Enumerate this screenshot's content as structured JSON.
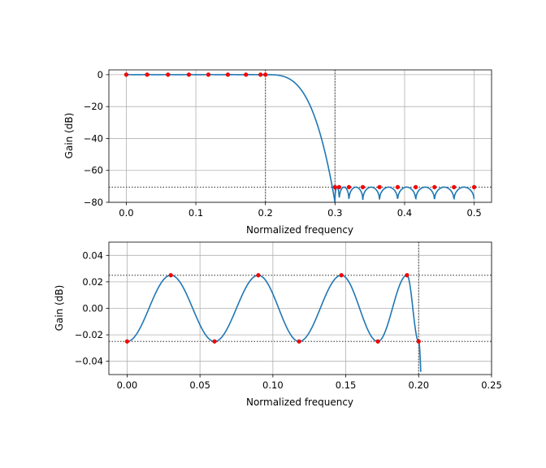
{
  "chart_data": [
    {
      "type": "line",
      "xlabel": "Normalized frequency",
      "ylabel": "Gain (dB)",
      "xlim": [
        -0.025,
        0.525
      ],
      "ylim": [
        -80,
        3
      ],
      "xticks": [
        0.0,
        0.1,
        0.2,
        0.3,
        0.4,
        0.5
      ],
      "xtick_labels": [
        "0.0",
        "0.1",
        "0.2",
        "0.3",
        "0.4",
        "0.5"
      ],
      "yticks": [
        0,
        -20,
        -40,
        -60,
        -80
      ],
      "ytick_labels": [
        "0",
        "−20",
        "−40",
        "−60",
        "−80"
      ],
      "grid": true,
      "ref_lines": {
        "vertical": [
          0.2,
          0.3
        ],
        "horizontal": [
          -70.5
        ]
      },
      "passband_edge": 0.2,
      "stopband_edge": 0.3,
      "stopband_level_db": -70.5,
      "series": [
        {
          "color": "#1f77b4",
          "x": [
            0.0,
            0.2,
            0.22,
            0.24,
            0.26,
            0.28,
            0.3
          ],
          "y": [
            0,
            0,
            -1.5,
            -8,
            -20,
            -40,
            -80
          ]
        }
      ],
      "markers": {
        "color": "#ff0000",
        "x": [
          0.0,
          0.03,
          0.06,
          0.09,
          0.118,
          0.146,
          0.172,
          0.193,
          0.2,
          0.3,
          0.306,
          0.32,
          0.34,
          0.364,
          0.39,
          0.416,
          0.443,
          0.471,
          0.5
        ],
        "y": [
          0,
          0,
          0,
          0,
          0,
          0,
          0,
          0,
          0,
          -70.5,
          -70.5,
          -70.5,
          -70.5,
          -70.5,
          -70.5,
          -70.5,
          -70.5,
          -70.5,
          -70.5
        ]
      }
    },
    {
      "type": "line",
      "xlabel": "Normalized frequency",
      "ylabel": "Gain (dB)",
      "xlim": [
        -0.0125,
        0.25
      ],
      "ylim": [
        -0.05,
        0.05
      ],
      "xticks": [
        0.0,
        0.05,
        0.1,
        0.15,
        0.2,
        0.25
      ],
      "xtick_labels": [
        "0.00",
        "0.05",
        "0.10",
        "0.15",
        "0.20",
        "0.25"
      ],
      "yticks": [
        0.04,
        0.02,
        0.0,
        -0.02,
        -0.04
      ],
      "ytick_labels": [
        "0.04",
        "0.02",
        "0.00",
        "−0.02",
        "−0.04"
      ],
      "grid": true,
      "ref_lines": {
        "vertical": [
          0.2
        ],
        "horizontal": [
          0.025,
          -0.025
        ]
      },
      "series": [
        {
          "color": "#1f77b4",
          "x": [
            0.0,
            0.03,
            0.06,
            0.09,
            0.118,
            0.147,
            0.172,
            0.192,
            0.2,
            0.2015
          ],
          "y": [
            -0.025,
            0.025,
            -0.025,
            0.025,
            -0.025,
            0.025,
            -0.025,
            0.025,
            -0.025,
            -0.05
          ]
        }
      ],
      "markers": {
        "color": "#ff0000",
        "x": [
          0.0,
          0.03,
          0.06,
          0.09,
          0.118,
          0.147,
          0.172,
          0.192,
          0.2
        ],
        "y": [
          -0.025,
          0.025,
          -0.025,
          0.025,
          -0.025,
          0.025,
          -0.025,
          0.025,
          -0.025
        ]
      }
    }
  ]
}
